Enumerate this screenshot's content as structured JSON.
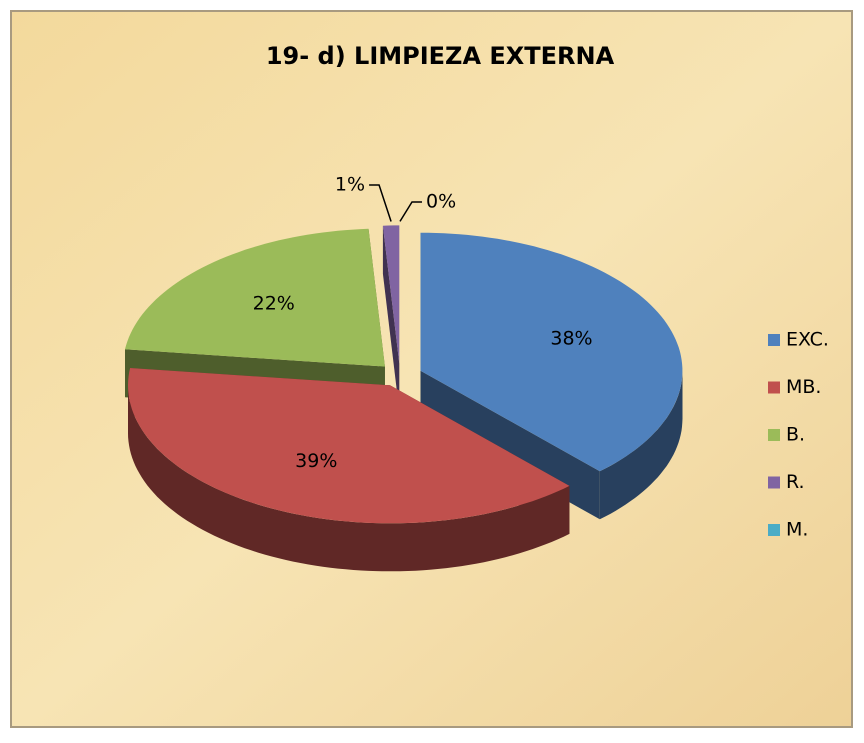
{
  "chart_data": {
    "type": "pie",
    "title": "19- d) LIMPIEZA EXTERNA",
    "categories": [
      "EXC.",
      "MB.",
      "B.",
      "R.",
      "M."
    ],
    "values": [
      38,
      39,
      22,
      1,
      0
    ],
    "value_labels": [
      "38%",
      "39%",
      "22%",
      "1%",
      "0%"
    ],
    "colors": [
      "#4f81bd",
      "#c0504d",
      "#9bbb59",
      "#8064a2",
      "#4bacc6"
    ],
    "legend": "right"
  }
}
